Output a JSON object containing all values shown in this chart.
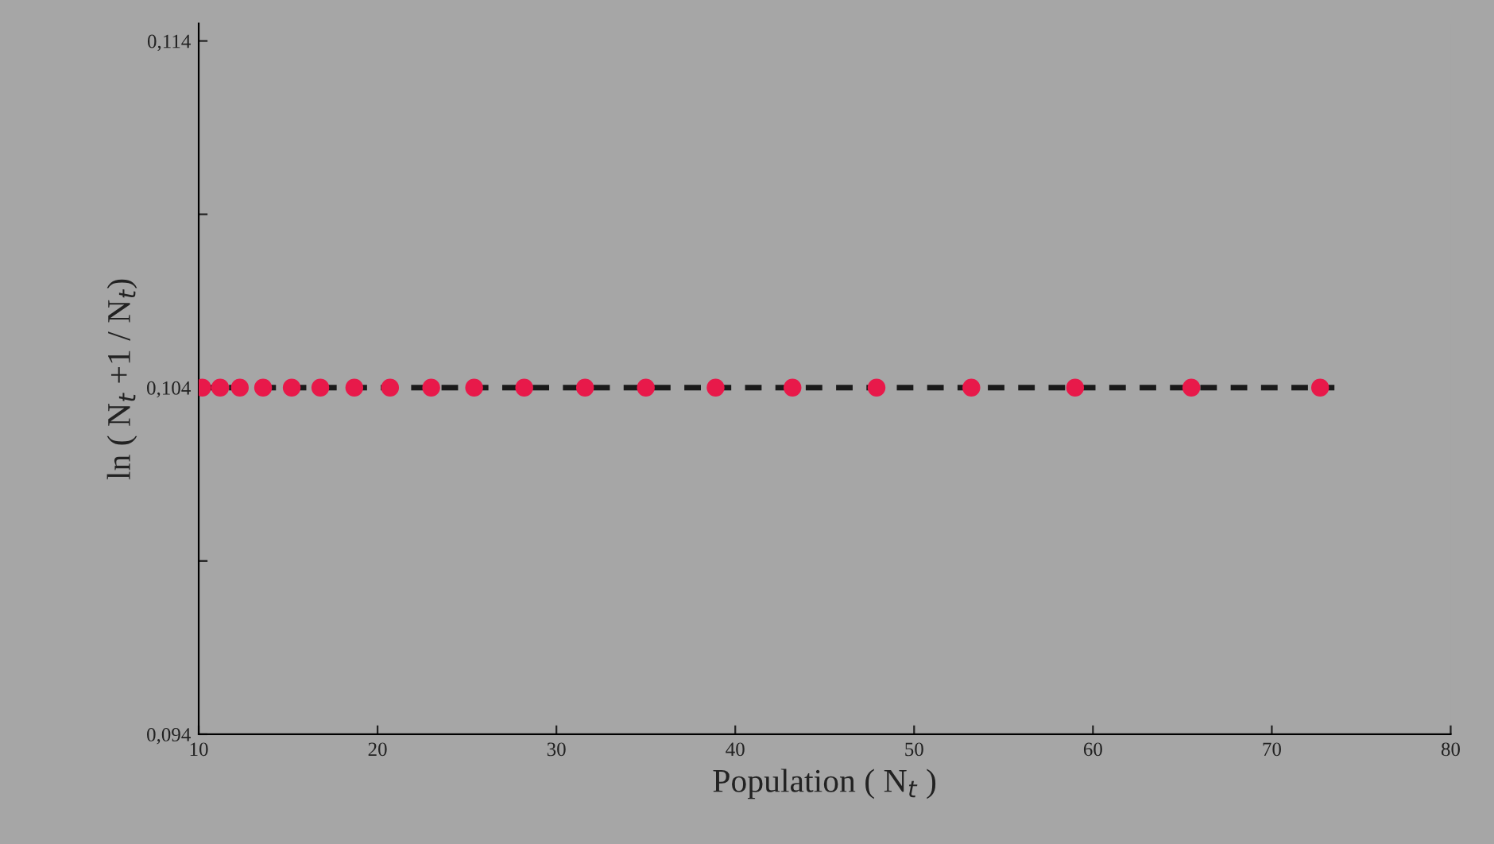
{
  "chart_data": {
    "type": "scatter",
    "xlabel": "Population ( N$_{t}$ )",
    "ylabel": "ln ( N$_{t}$ +1 / N$_{t}$)",
    "series": [
      {
        "color": "#e8194a",
        "marker": "circle",
        "x": [
          10.2,
          11.2,
          12.3,
          13.6,
          15.2,
          16.8,
          18.7,
          20.7,
          23.0,
          25.4,
          28.2,
          31.6,
          35.0,
          38.9,
          43.2,
          47.9,
          53.2,
          59.0,
          65.5,
          72.7
        ],
        "values": [
          0.104,
          0.104,
          0.104,
          0.104,
          0.104,
          0.104,
          0.104,
          0.104,
          0.104,
          0.104,
          0.104,
          0.104,
          0.104,
          0.104,
          0.104,
          0.104,
          0.104,
          0.104,
          0.104,
          0.104
        ]
      },
      {
        "type": "line",
        "color": "#1a1a1a",
        "line_style": "dashed",
        "marker": "none",
        "x": [
          10,
          73.5
        ],
        "values": [
          0.104,
          0.104
        ]
      }
    ],
    "xlim": [
      10,
      80
    ],
    "xticks": [
      10,
      20,
      30,
      40,
      50,
      60,
      70,
      80
    ],
    "ylim": [
      0.094,
      0.1145
    ],
    "yticks": [
      {
        "value": 0.094,
        "label": "0,094"
      },
      {
        "value": 0.099,
        "label": null
      },
      {
        "value": 0.104,
        "label": "0,104"
      },
      {
        "value": 0.109,
        "label": null
      },
      {
        "value": 0.114,
        "label": "0,114"
      }
    ],
    "grid": false,
    "legend": false
  }
}
